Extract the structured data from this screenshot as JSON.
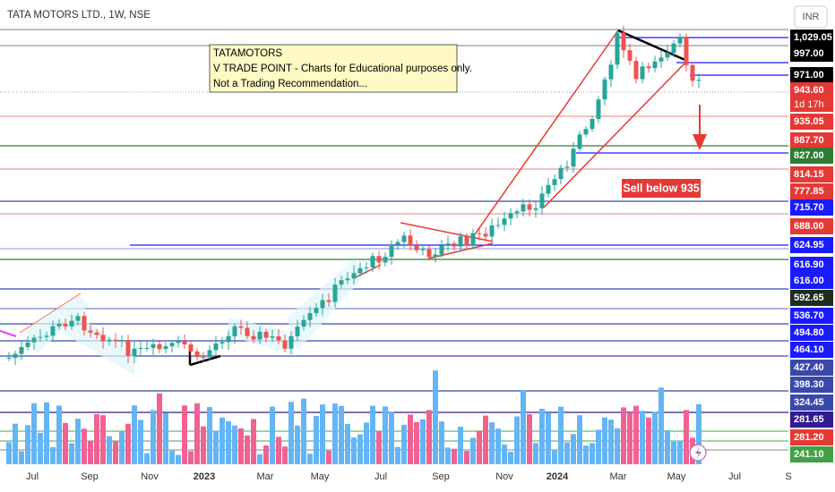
{
  "header": {
    "symbol": "TATA MOTORS LTD., 1W, NSE",
    "currency": "INR"
  },
  "note": {
    "lines": [
      "TATAMOTORS",
      "V TRADE POINT - Charts for Educational purposes only.",
      "Not a Trading Recommendation..."
    ]
  },
  "annotation": "Sell below 935",
  "countdown": "1d 17h",
  "price_labels": [
    "1,029.05",
    "997.00",
    "971.00",
    "943.60",
    "935.05",
    "887.70",
    "827.00",
    "814.15",
    "777.85",
    "715.70",
    "688.00",
    "624.95",
    "616.90",
    "616.00",
    "592.65",
    "536.70",
    "494.80",
    "464.10",
    "427.40",
    "398.30",
    "324.45",
    "281.65",
    "281.20",
    "241.10"
  ],
  "time_labels": [
    "Jul",
    "Sep",
    "Nov",
    "2023",
    "Mar",
    "May",
    "Jul",
    "Sep",
    "Nov",
    "2024",
    "Mar",
    "May",
    "Jul",
    "S"
  ]
}
